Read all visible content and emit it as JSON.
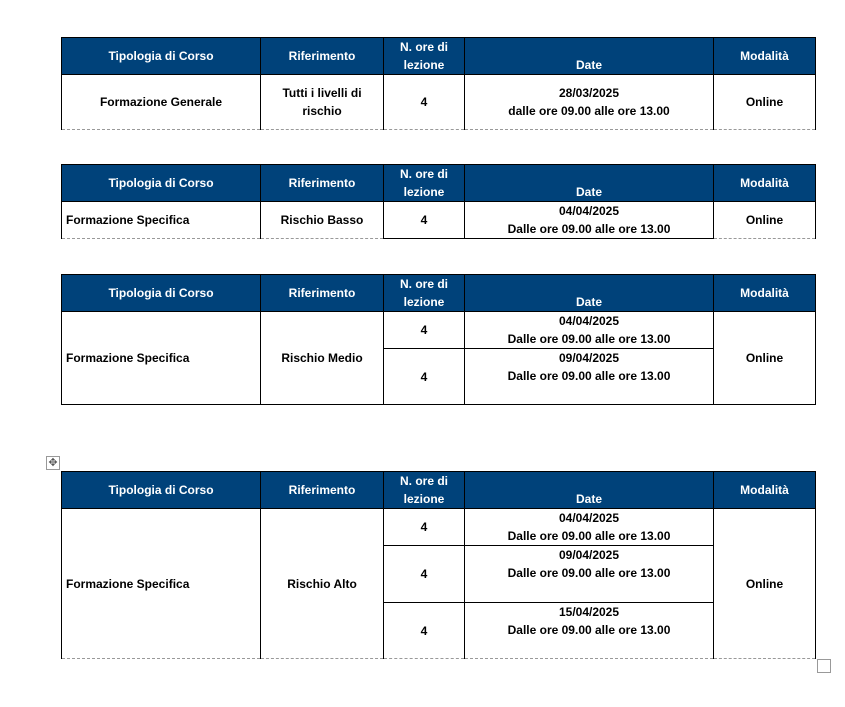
{
  "headers": {
    "tipologia": "Tipologia di Corso",
    "riferimento": "Riferimento",
    "ore": "N. ore di lezione",
    "date": "Date",
    "modalita": "Modalità"
  },
  "tables": [
    {
      "tipologia": "Formazione Generale",
      "riferimento": "Tutti i livelli di rischio",
      "modalita": "Online",
      "sessions": [
        {
          "ore": "4",
          "data": "28/03/2025",
          "orario": "dalle ore 09.00 alle ore 13.00"
        }
      ]
    },
    {
      "tipologia": "Formazione Specifica",
      "riferimento": "Rischio Basso",
      "modalita": "Online",
      "sessions": [
        {
          "ore": "4",
          "data": "04/04/2025",
          "orario": "Dalle ore 09.00 alle ore 13.00"
        }
      ]
    },
    {
      "tipologia": "Formazione Specifica",
      "riferimento": "Rischio Medio",
      "modalita": "Online",
      "sessions": [
        {
          "ore": "4",
          "data": "04/04/2025",
          "orario": "Dalle ore 09.00 alle ore 13.00"
        },
        {
          "ore": "4",
          "data": "09/04/2025",
          "orario": "Dalle ore 09.00 alle ore 13.00"
        }
      ]
    },
    {
      "tipologia": "Formazione Specifica",
      "riferimento": "Rischio Alto",
      "modalita": "Online",
      "sessions": [
        {
          "ore": "4",
          "data": "04/04/2025",
          "orario": "Dalle ore 09.00 alle ore 13.00"
        },
        {
          "ore": "4",
          "data": "09/04/2025",
          "orario": "Dalle ore 09.00 alle ore 13.00"
        },
        {
          "ore": "4",
          "data": "15/04/2025",
          "orario": "Dalle ore 09.00 alle ore 13.00"
        }
      ]
    }
  ],
  "icons": {
    "move_handle": "move-icon",
    "resize_handle": "resize-icon"
  }
}
